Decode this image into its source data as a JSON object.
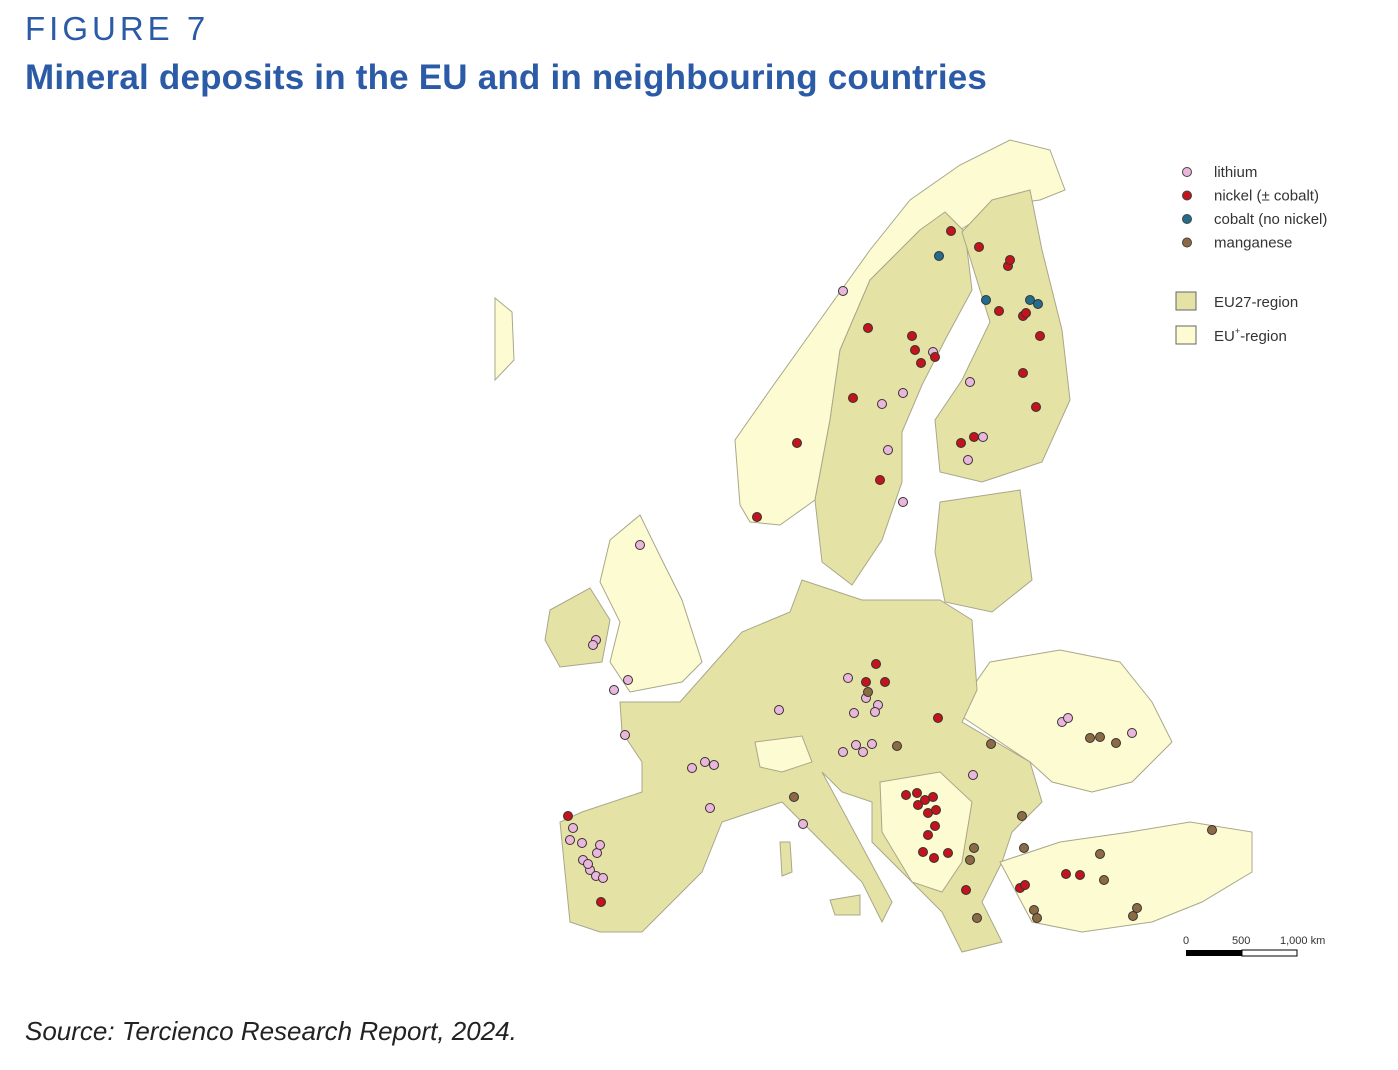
{
  "figure": {
    "label": "FIGURE 7",
    "title": "Mineral deposits in the EU and in neighbouring countries",
    "source": "Source: Tercienco Research Report, 2024."
  },
  "map": {
    "region": "Europe",
    "legend": {
      "deposits": [
        {
          "key": "lithium",
          "label": "lithium",
          "color": "#eab6dc"
        },
        {
          "key": "nickel",
          "label": "nickel (± cobalt)",
          "color": "#c3141c"
        },
        {
          "key": "cobalt",
          "label": "cobalt (no nickel)",
          "color": "#226d8c"
        },
        {
          "key": "manganese",
          "label": "manganese",
          "color": "#8c6a44"
        }
      ],
      "regions": [
        {
          "key": "eu27",
          "label": "EU27-region",
          "color": "#e5e2a5"
        },
        {
          "key": "euplus",
          "label_main": "EU",
          "label_sup": "+",
          "label_rest": "-region",
          "color": "#fdfbd2"
        }
      ]
    },
    "scale_bar": {
      "ticks": [
        "0",
        "500",
        "1,000 km"
      ]
    },
    "colors": {
      "border": "#a9a78a",
      "sea": "#ffffff"
    }
  }
}
